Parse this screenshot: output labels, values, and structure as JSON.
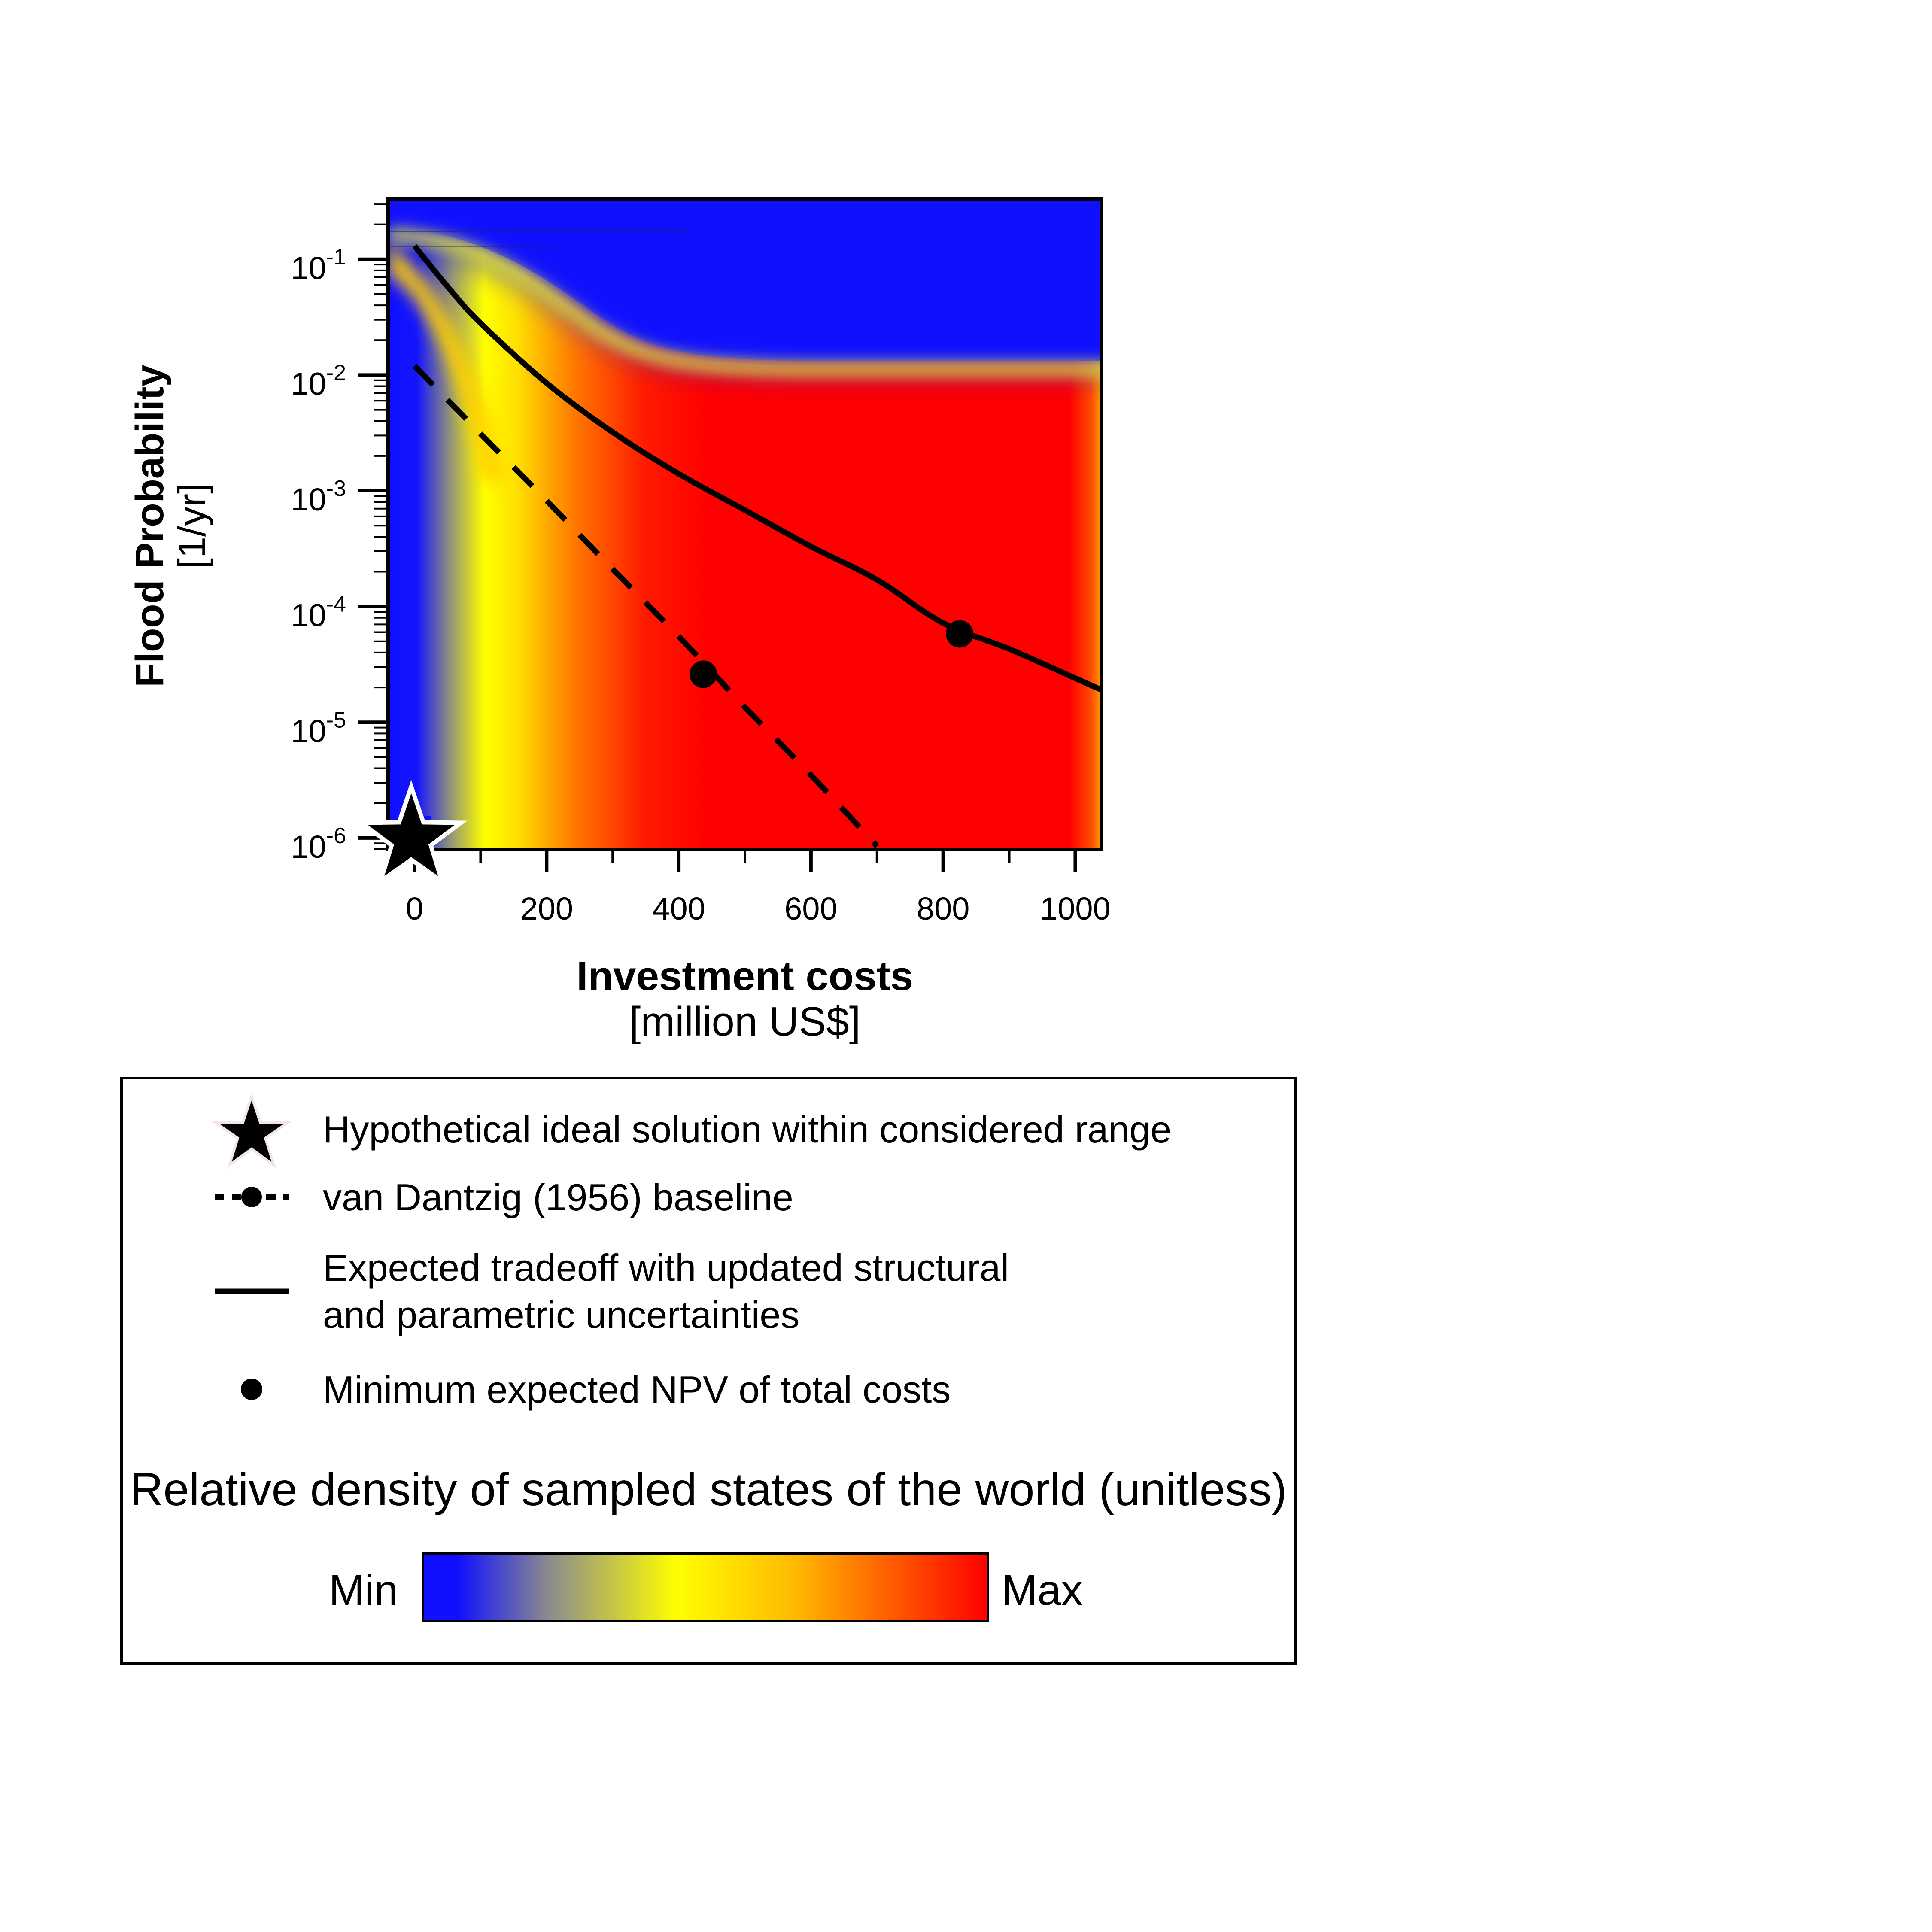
{
  "chart_data": {
    "type": "heatmap",
    "title": "",
    "xlabel": "Investment costs",
    "xlabel_units": "[million US$]",
    "ylabel": "Flood Probability",
    "ylabel_units": "[1/yr]",
    "xlim": [
      -40,
      1040
    ],
    "ylim": [
      8e-07,
      0.33
    ],
    "yscale": "log",
    "x_ticks": [
      {
        "value": 0,
        "label": "0"
      },
      {
        "value": 200,
        "label": "200"
      },
      {
        "value": 400,
        "label": "400"
      },
      {
        "value": 600,
        "label": "600"
      },
      {
        "value": 800,
        "label": "800"
      },
      {
        "value": 1000,
        "label": "1000"
      }
    ],
    "x_minor_ticks": [
      100,
      300,
      500,
      700,
      900
    ],
    "y_ticks": [
      {
        "value": 0.1,
        "base": "10",
        "exp": "-1"
      },
      {
        "value": 0.01,
        "base": "10",
        "exp": "-2"
      },
      {
        "value": 0.001,
        "base": "10",
        "exp": "-3"
      },
      {
        "value": 0.0001,
        "base": "10",
        "exp": "-4"
      },
      {
        "value": 1e-05,
        "base": "10",
        "exp": "-5"
      },
      {
        "value": 1e-06,
        "base": "10",
        "exp": "-6"
      }
    ],
    "series": [
      {
        "name": "van Dantzig (1956) baseline",
        "style": "dashed",
        "points": [
          [
            0,
            0.012
          ],
          [
            100,
            0.0031
          ],
          [
            200,
            0.00082
          ],
          [
            300,
            0.00021
          ],
          [
            400,
            5.5e-05
          ],
          [
            500,
            1.35e-05
          ],
          [
            600,
            3.5e-06
          ],
          [
            700,
            8.5e-07
          ]
        ],
        "optimum": [
          437,
          2.6e-05
        ]
      },
      {
        "name": "Expected tradeoff with updated structural and parametric uncertainties",
        "style": "solid",
        "points": [
          [
            0,
            0.13
          ],
          [
            50,
            0.058
          ],
          [
            100,
            0.028
          ],
          [
            200,
            0.0085
          ],
          [
            300,
            0.0032
          ],
          [
            400,
            0.0014
          ],
          [
            500,
            0.00068
          ],
          [
            600,
            0.00033
          ],
          [
            700,
            0.00017
          ],
          [
            800,
            7.2e-05
          ],
          [
            900,
            4.3e-05
          ],
          [
            1000,
            2.4e-05
          ],
          [
            1040,
            1.9e-05
          ]
        ],
        "optimum": [
          825,
          5.8e-05
        ]
      }
    ],
    "ideal_solution": [
      -5,
      9e-07
    ],
    "colorbar": {
      "title": "Relative density of sampled states of the world (unitless)",
      "min_label": "Min",
      "max_label": "Max",
      "colors": [
        "#1010ff",
        "#ffff00",
        "#ff0000"
      ]
    }
  },
  "legend": {
    "entries": [
      {
        "symbol": "star",
        "lines": [
          "Hypothetical ideal solution within considered range"
        ]
      },
      {
        "symbol": "dashed-with-dot",
        "lines": [
          "van Dantzig (1956) baseline"
        ]
      },
      {
        "symbol": "solid-line",
        "lines": [
          "Expected tradeoff with updated structural",
          "and parametric uncertainties"
        ]
      },
      {
        "symbol": "dot",
        "lines": [
          "Minimum expected NPV of total costs"
        ]
      }
    ]
  },
  "colors": {
    "blue": "#1010ff",
    "yellow": "#ffff00",
    "red": "#ff0000",
    "ink": "#000000"
  }
}
